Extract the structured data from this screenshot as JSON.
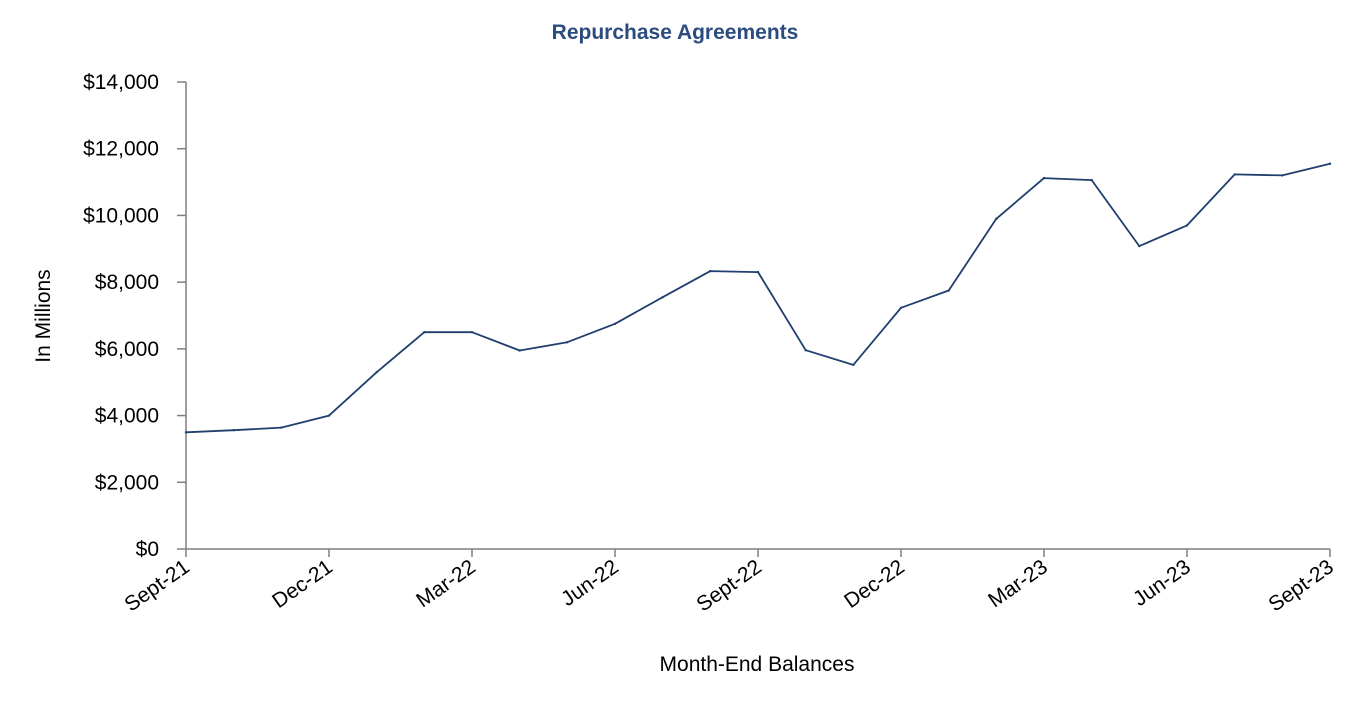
{
  "chart_data": {
    "type": "line",
    "title": "Repurchase Agreements",
    "xlabel": "Month-End Balances",
    "ylabel": "In Millions",
    "ylim": [
      0,
      14000
    ],
    "y_ticks": [
      0,
      2000,
      4000,
      6000,
      8000,
      10000,
      12000,
      14000
    ],
    "y_tick_labels": [
      "$0",
      "$2,000",
      "$4,000",
      "$6,000",
      "$8,000",
      "$10,000",
      "$12,000",
      "$14,000"
    ],
    "x_tick_labels": [
      "Sept-21",
      "Dec-21",
      "Mar-22",
      "Jun-22",
      "Sept-22",
      "Dec-22",
      "Mar-23",
      "Jun-23",
      "Sept-23"
    ],
    "x_tick_every": 3,
    "grid": false,
    "series": [
      {
        "color": "#1f3f6e",
        "values": [
          3500,
          3560,
          3640,
          4000,
          5300,
          6500,
          6500,
          5950,
          6200,
          6750,
          7550,
          8330,
          8300,
          5960,
          5520,
          7230,
          7750,
          9900,
          11120,
          11060,
          9080,
          9700,
          11230,
          11200,
          11550
        ]
      }
    ]
  }
}
